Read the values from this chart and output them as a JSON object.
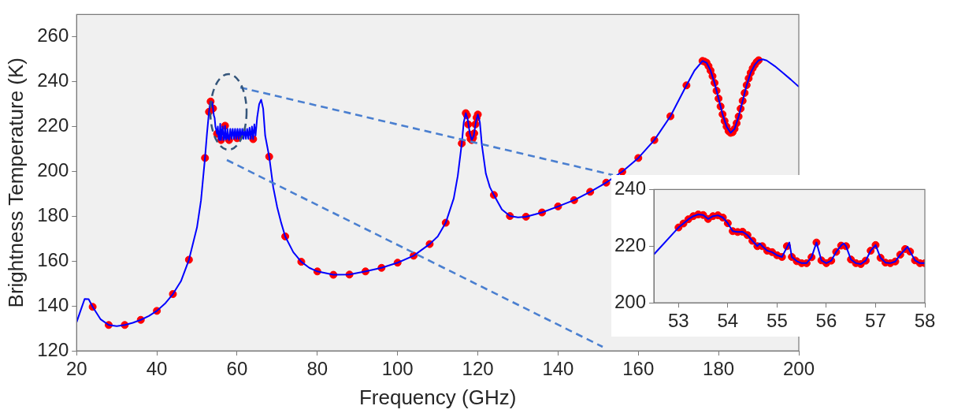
{
  "chart_data": [
    {
      "type": "line",
      "xlabel": "Frequency (GHz)",
      "ylabel": "Brightness Temperature (K)",
      "xlim": [
        20,
        200
      ],
      "ylim": [
        120,
        270
      ],
      "xticks": [
        20,
        40,
        60,
        80,
        100,
        120,
        140,
        160,
        180,
        200
      ],
      "yticks": [
        120,
        140,
        160,
        180,
        200,
        220,
        240,
        260
      ],
      "legend": false,
      "grid": false,
      "series": [
        {
          "type": "line",
          "marker": "none",
          "color": "#0000ff",
          "x": [
            20,
            21,
            22,
            23,
            24,
            26,
            28,
            30,
            32,
            34,
            36,
            38,
            40,
            42,
            44,
            46,
            48,
            50,
            51,
            52,
            52.5,
            53.0,
            53.2,
            53.4,
            53.6,
            53.8,
            54.0,
            54.2,
            54.4,
            54.6,
            54.8,
            55.0,
            55.2,
            55.4,
            55.6,
            55.8,
            56.0,
            56.2,
            56.4,
            56.6,
            56.8,
            57.0,
            57.2,
            57.4,
            57.6,
            57.8,
            58.0,
            58.3,
            58.6,
            58.9,
            59.2,
            59.5,
            59.8,
            60.1,
            60.4,
            60.7,
            61.0,
            61.3,
            61.6,
            61.9,
            62.2,
            62.5,
            62.8,
            63.1,
            63.4,
            63.7,
            64.0,
            64.3,
            64.6,
            65.0,
            65.5,
            66.0,
            66.5,
            67,
            68,
            69,
            70,
            71,
            72,
            74,
            76,
            78,
            80,
            84,
            88,
            92,
            96,
            100,
            104,
            108,
            110,
            112,
            114,
            115,
            116,
            116.5,
            117,
            117.5,
            118,
            118.5,
            119,
            119.5,
            120,
            120.5,
            121,
            122,
            123,
            124,
            126,
            128,
            130,
            132,
            136,
            140,
            144,
            148,
            152,
            156,
            160,
            164,
            168,
            172,
            174,
            176,
            177,
            178,
            179,
            180,
            181,
            182,
            183,
            184,
            185,
            186,
            187,
            188,
            189,
            190,
            191,
            192,
            194,
            196,
            198,
            200
          ],
          "values": [
            132.8,
            138,
            143.1,
            143,
            139.6,
            134,
            131.5,
            131,
            131.5,
            132.5,
            133.8,
            135.5,
            137.8,
            141,
            145.3,
            151,
            160.6,
            175,
            187,
            206,
            217,
            226.6,
            229.5,
            231.2,
            229.6,
            230.9,
            228.1,
            225,
            223.9,
            220,
            218.4,
            216.8,
            220,
            214.7,
            214,
            221.3,
            214,
            218,
            220,
            214,
            214.9,
            220.4,
            214.2,
            214.6,
            219,
            215,
            214,
            219,
            214.5,
            219,
            214.5,
            219,
            214.5,
            219,
            214.5,
            219,
            214.5,
            219,
            214.5,
            219,
            214.5,
            219,
            214.5,
            219.5,
            214.5,
            220,
            214.4,
            221,
            216,
            224,
            230,
            232,
            228,
            216,
            206.6,
            193,
            184,
            177,
            171,
            164,
            159.7,
            157,
            155.4,
            153.9,
            154,
            155.4,
            157,
            159.3,
            162.4,
            167.6,
            171,
            177.1,
            188,
            198,
            212.5,
            222,
            226,
            223,
            217,
            214,
            216,
            222,
            225.4,
            222,
            212,
            199,
            193,
            189.5,
            183,
            180.1,
            179.5,
            179.8,
            181.7,
            184.4,
            187.2,
            190.9,
            195,
            199.9,
            206,
            214,
            224.6,
            238.4,
            245,
            249.3,
            248.5,
            245,
            239.5,
            232.5,
            225.5,
            220,
            217.2,
            219,
            224.5,
            231.5,
            238.5,
            244,
            247.5,
            249.6,
            250,
            249.5,
            247,
            244,
            241,
            237.8
          ]
        },
        {
          "type": "scatter",
          "marker": "circle",
          "color": "#ff0000",
          "x": [
            24,
            28,
            32,
            36,
            40,
            44,
            48,
            52,
            53.0,
            53.4,
            54.0,
            55.0,
            56.0,
            57.0,
            58.0,
            60,
            64,
            68,
            72,
            76,
            80,
            84,
            88,
            92,
            96,
            100,
            104,
            108,
            112,
            116,
            117,
            117.3,
            117.6,
            117.9,
            118.2,
            118.5,
            118.8,
            119.1,
            119.4,
            119.7,
            120,
            124,
            128,
            132,
            136,
            140,
            144,
            148,
            152,
            156,
            160,
            164,
            168,
            172,
            176,
            176.5,
            177,
            177.5,
            178,
            178.5,
            179,
            179.5,
            180,
            180.5,
            181,
            181.5,
            182,
            182.5,
            183,
            183.5,
            184,
            184.5,
            185,
            185.5,
            186,
            186.5,
            187,
            187.5,
            188,
            188.5,
            189,
            189.5,
            190
          ],
          "values": [
            139.6,
            131.5,
            131.5,
            133.8,
            137.8,
            145.3,
            160.6,
            206,
            226.6,
            231.2,
            228.1,
            216.8,
            214,
            220.4,
            214,
            214.8,
            214.4,
            206.6,
            171,
            159.7,
            155.4,
            153.9,
            154,
            155.4,
            157,
            159.3,
            162.4,
            167.6,
            177.1,
            212.5,
            226,
            225,
            221,
            216.5,
            214.5,
            214,
            215,
            217,
            221,
            224,
            225.4,
            189.5,
            180.1,
            179.8,
            181.7,
            184.4,
            187.2,
            190.9,
            195,
            199.9,
            206,
            214,
            224.6,
            238.4,
            249.3,
            249,
            248.5,
            247,
            245,
            242.5,
            239.5,
            236,
            232.5,
            229,
            225.5,
            222.5,
            220,
            218,
            217.2,
            217.5,
            219,
            221.5,
            224.5,
            228,
            231.5,
            235,
            238.5,
            241.5,
            244,
            246,
            247.5,
            248.8,
            249.6
          ]
        }
      ]
    },
    {
      "type": "line",
      "xlim": [
        52.5,
        58
      ],
      "ylim": [
        200,
        240
      ],
      "xticks": [
        53,
        54,
        55,
        56,
        57,
        58
      ],
      "yticks": [
        200,
        220,
        240
      ],
      "legend": false,
      "grid": false,
      "series": [
        {
          "type": "line",
          "marker": "none",
          "color": "#0000ff",
          "x": [
            52.5,
            53.0,
            53.1,
            53.2,
            53.3,
            53.4,
            53.5,
            53.6,
            53.7,
            53.8,
            53.9,
            54.0,
            54.1,
            54.2,
            54.3,
            54.4,
            54.5,
            54.6,
            54.65,
            54.7,
            54.8,
            54.9,
            55.0,
            55.1,
            55.25,
            55.3,
            55.4,
            55.5,
            55.6,
            55.7,
            55.8,
            55.9,
            56.0,
            56.1,
            56.2,
            56.3,
            56.35,
            56.4,
            56.5,
            56.6,
            56.7,
            56.8,
            56.9,
            57.0,
            57.1,
            57.2,
            57.3,
            57.4,
            57.5,
            57.65,
            57.7,
            57.8,
            57.9,
            58.0
          ],
          "values": [
            217.1,
            226.6,
            228,
            229.5,
            230.6,
            231.2,
            231,
            229.6,
            230.6,
            230.9,
            230.1,
            228.1,
            225.3,
            225,
            225.1,
            223.9,
            221.9,
            220,
            221,
            220,
            218.4,
            217.9,
            216.8,
            216.2,
            221.3,
            216.2,
            214.7,
            214,
            214,
            216.1,
            221.3,
            215,
            214,
            214.9,
            218,
            220.2,
            221,
            220,
            215.3,
            214,
            213.7,
            214.9,
            218.4,
            220.4,
            215.9,
            214.2,
            214,
            214.6,
            217,
            219.8,
            218.1,
            215,
            214,
            214
          ]
        },
        {
          "type": "scatter",
          "marker": "circle",
          "color": "#ff0000",
          "x": [
            53.0,
            53.1,
            53.2,
            53.3,
            53.4,
            53.5,
            53.6,
            53.7,
            53.8,
            53.9,
            54.0,
            54.1,
            54.2,
            54.3,
            54.4,
            54.5,
            54.6,
            54.7,
            54.8,
            54.9,
            55.0,
            55.1,
            55.2,
            55.3,
            55.4,
            55.5,
            55.6,
            55.7,
            55.8,
            55.9,
            56.0,
            56.1,
            56.2,
            56.3,
            56.4,
            56.5,
            56.6,
            56.7,
            56.8,
            56.9,
            57.0,
            57.1,
            57.2,
            57.3,
            57.4,
            57.5,
            57.6,
            57.7,
            57.8,
            57.9,
            58.0
          ],
          "values": [
            226.6,
            228,
            229.5,
            230.6,
            231.2,
            231,
            229.6,
            230.6,
            230.9,
            230.1,
            228.1,
            225.3,
            225,
            225.1,
            223.9,
            221.9,
            220,
            220,
            218.4,
            217.9,
            216.8,
            216.2,
            220,
            216.2,
            214.7,
            214,
            214,
            216.1,
            221.3,
            215,
            214,
            214.9,
            218,
            220.2,
            220,
            215.3,
            214,
            213.7,
            214.9,
            218.4,
            220.4,
            215.9,
            214.2,
            214,
            214.6,
            217,
            219,
            218.1,
            215,
            214,
            214
          ]
        }
      ]
    }
  ]
}
